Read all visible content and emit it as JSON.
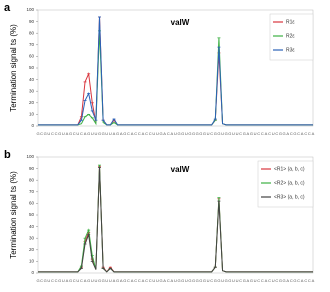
{
  "chart_data": [
    {
      "type": "line",
      "panel": "a",
      "title": "valW",
      "y_label": "Termination signal ts (%)",
      "categories": [
        "G",
        "C",
        "G",
        "U",
        "C",
        "C",
        "G",
        "U",
        "A",
        "G",
        "C",
        "U",
        "C",
        "A",
        "G",
        "U",
        "U",
        "G",
        "G",
        "U",
        "U",
        "A",
        "G",
        "A",
        "G",
        "C",
        "A",
        "C",
        "C",
        "A",
        "C",
        "C",
        "U",
        "U",
        "G",
        "A",
        "C",
        "A",
        "U",
        "G",
        "G",
        "U",
        "G",
        "G",
        "G",
        "G",
        "G",
        "U",
        "C",
        "G",
        "G",
        "U",
        "G",
        "G",
        "U",
        "U",
        "C",
        "G",
        "A",
        "G",
        "U",
        "C",
        "C",
        "A",
        "C",
        "U",
        "C",
        "G",
        "G",
        "A",
        "C",
        "G",
        "C",
        "A",
        "C",
        "C",
        "A"
      ],
      "ylim": [
        0,
        100
      ],
      "yticks": [
        0,
        10,
        20,
        30,
        40,
        50,
        60,
        70,
        80,
        90,
        100
      ],
      "series": [
        {
          "name": "R1ε",
          "color": "#d9363e",
          "values": [
            1,
            1,
            1,
            1,
            1,
            1,
            1,
            1,
            1,
            1,
            1,
            1,
            8,
            38,
            45,
            20,
            3,
            94,
            5,
            1,
            1,
            5,
            1,
            1,
            1,
            1,
            1,
            1,
            1,
            1,
            1,
            1,
            1,
            1,
            1,
            1,
            1,
            1,
            1,
            1,
            1,
            1,
            1,
            1,
            1,
            1,
            1,
            1,
            1,
            5,
            63,
            2,
            1,
            1,
            1,
            1,
            1,
            1,
            1,
            1,
            1,
            1,
            1,
            1,
            1,
            1,
            1,
            1,
            1,
            1,
            1,
            1,
            1,
            1,
            1,
            1,
            1
          ]
        },
        {
          "name": "R2ε",
          "color": "#3cb043",
          "values": [
            1,
            1,
            1,
            1,
            1,
            1,
            1,
            1,
            1,
            1,
            1,
            1,
            2,
            8,
            10,
            7,
            2,
            82,
            3,
            1,
            1,
            3,
            1,
            1,
            1,
            1,
            1,
            1,
            1,
            1,
            1,
            1,
            1,
            1,
            1,
            1,
            1,
            1,
            1,
            1,
            1,
            1,
            1,
            1,
            1,
            1,
            1,
            1,
            1,
            5,
            76,
            2,
            1,
            1,
            1,
            1,
            1,
            1,
            1,
            1,
            1,
            1,
            1,
            1,
            1,
            1,
            1,
            1,
            1,
            1,
            1,
            1,
            1,
            1,
            1,
            1,
            1
          ]
        },
        {
          "name": "R3ε",
          "color": "#2a62b8",
          "values": [
            1,
            1,
            1,
            1,
            1,
            1,
            1,
            1,
            1,
            1,
            1,
            1,
            5,
            22,
            28,
            13,
            5,
            94,
            5,
            1,
            1,
            6,
            1,
            1,
            1,
            1,
            1,
            1,
            1,
            1,
            1,
            1,
            1,
            1,
            1,
            1,
            1,
            1,
            1,
            1,
            1,
            1,
            1,
            1,
            1,
            1,
            1,
            1,
            1,
            6,
            68,
            2,
            1,
            1,
            1,
            1,
            1,
            1,
            1,
            1,
            1,
            1,
            1,
            1,
            1,
            1,
            1,
            1,
            1,
            1,
            1,
            1,
            1,
            1,
            1,
            1,
            1
          ]
        }
      ]
    },
    {
      "type": "line",
      "panel": "b",
      "title": "valW",
      "y_label": "Termination signal ts (%)",
      "categories": [
        "G",
        "C",
        "G",
        "U",
        "C",
        "C",
        "G",
        "U",
        "A",
        "G",
        "C",
        "U",
        "C",
        "A",
        "G",
        "U",
        "U",
        "G",
        "G",
        "U",
        "U",
        "A",
        "G",
        "A",
        "G",
        "C",
        "A",
        "C",
        "C",
        "A",
        "C",
        "C",
        "U",
        "U",
        "G",
        "A",
        "C",
        "A",
        "U",
        "G",
        "G",
        "U",
        "G",
        "G",
        "G",
        "G",
        "G",
        "U",
        "C",
        "G",
        "G",
        "U",
        "G",
        "G",
        "U",
        "U",
        "C",
        "G",
        "A",
        "G",
        "U",
        "C",
        "C",
        "A",
        "C",
        "U",
        "C",
        "G",
        "G",
        "A",
        "C",
        "G",
        "C",
        "A",
        "C",
        "C",
        "A"
      ],
      "ylim": [
        0,
        100
      ],
      "yticks": [
        0,
        10,
        20,
        30,
        40,
        50,
        60,
        70,
        80,
        90,
        100
      ],
      "series": [
        {
          "name": "<R1> (a, b, c)",
          "color": "#d9363e",
          "values": [
            1,
            1,
            1,
            1,
            1,
            1,
            1,
            1,
            1,
            1,
            1,
            1,
            5,
            27,
            35,
            12,
            3,
            92,
            5,
            1,
            5,
            1,
            1,
            1,
            1,
            1,
            1,
            1,
            1,
            1,
            1,
            1,
            1,
            1,
            1,
            1,
            1,
            1,
            1,
            1,
            1,
            1,
            1,
            1,
            1,
            1,
            1,
            1,
            1,
            5,
            64,
            2,
            1,
            1,
            1,
            1,
            1,
            1,
            1,
            1,
            1,
            1,
            1,
            1,
            1,
            1,
            1,
            1,
            1,
            1,
            1,
            1,
            1,
            1,
            1,
            1,
            1
          ]
        },
        {
          "name": "<R2> (a, b, c)",
          "color": "#3cb043",
          "values": [
            1,
            1,
            1,
            1,
            1,
            1,
            1,
            1,
            1,
            1,
            1,
            1,
            6,
            30,
            37,
            15,
            3,
            93,
            4,
            1,
            4,
            1,
            1,
            1,
            1,
            1,
            1,
            1,
            1,
            1,
            1,
            1,
            1,
            1,
            1,
            1,
            1,
            1,
            1,
            1,
            1,
            1,
            1,
            1,
            1,
            1,
            1,
            1,
            1,
            5,
            65,
            2,
            1,
            1,
            1,
            1,
            1,
            1,
            1,
            1,
            1,
            1,
            1,
            1,
            1,
            1,
            1,
            1,
            1,
            1,
            1,
            1,
            1,
            1,
            1,
            1,
            1
          ]
        },
        {
          "name": "<R3> (a, b, c)",
          "color": "#444444",
          "values": [
            1,
            1,
            1,
            1,
            1,
            1,
            1,
            1,
            1,
            1,
            1,
            1,
            4,
            25,
            33,
            10,
            3,
            91,
            4,
            1,
            4,
            1,
            1,
            1,
            1,
            1,
            1,
            1,
            1,
            1,
            1,
            1,
            1,
            1,
            1,
            1,
            1,
            1,
            1,
            1,
            1,
            1,
            1,
            1,
            1,
            1,
            1,
            1,
            1,
            5,
            62,
            2,
            1,
            1,
            1,
            1,
            1,
            1,
            1,
            1,
            1,
            1,
            1,
            1,
            1,
            1,
            1,
            1,
            1,
            1,
            1,
            1,
            1,
            1,
            1,
            1,
            1
          ]
        }
      ]
    }
  ]
}
